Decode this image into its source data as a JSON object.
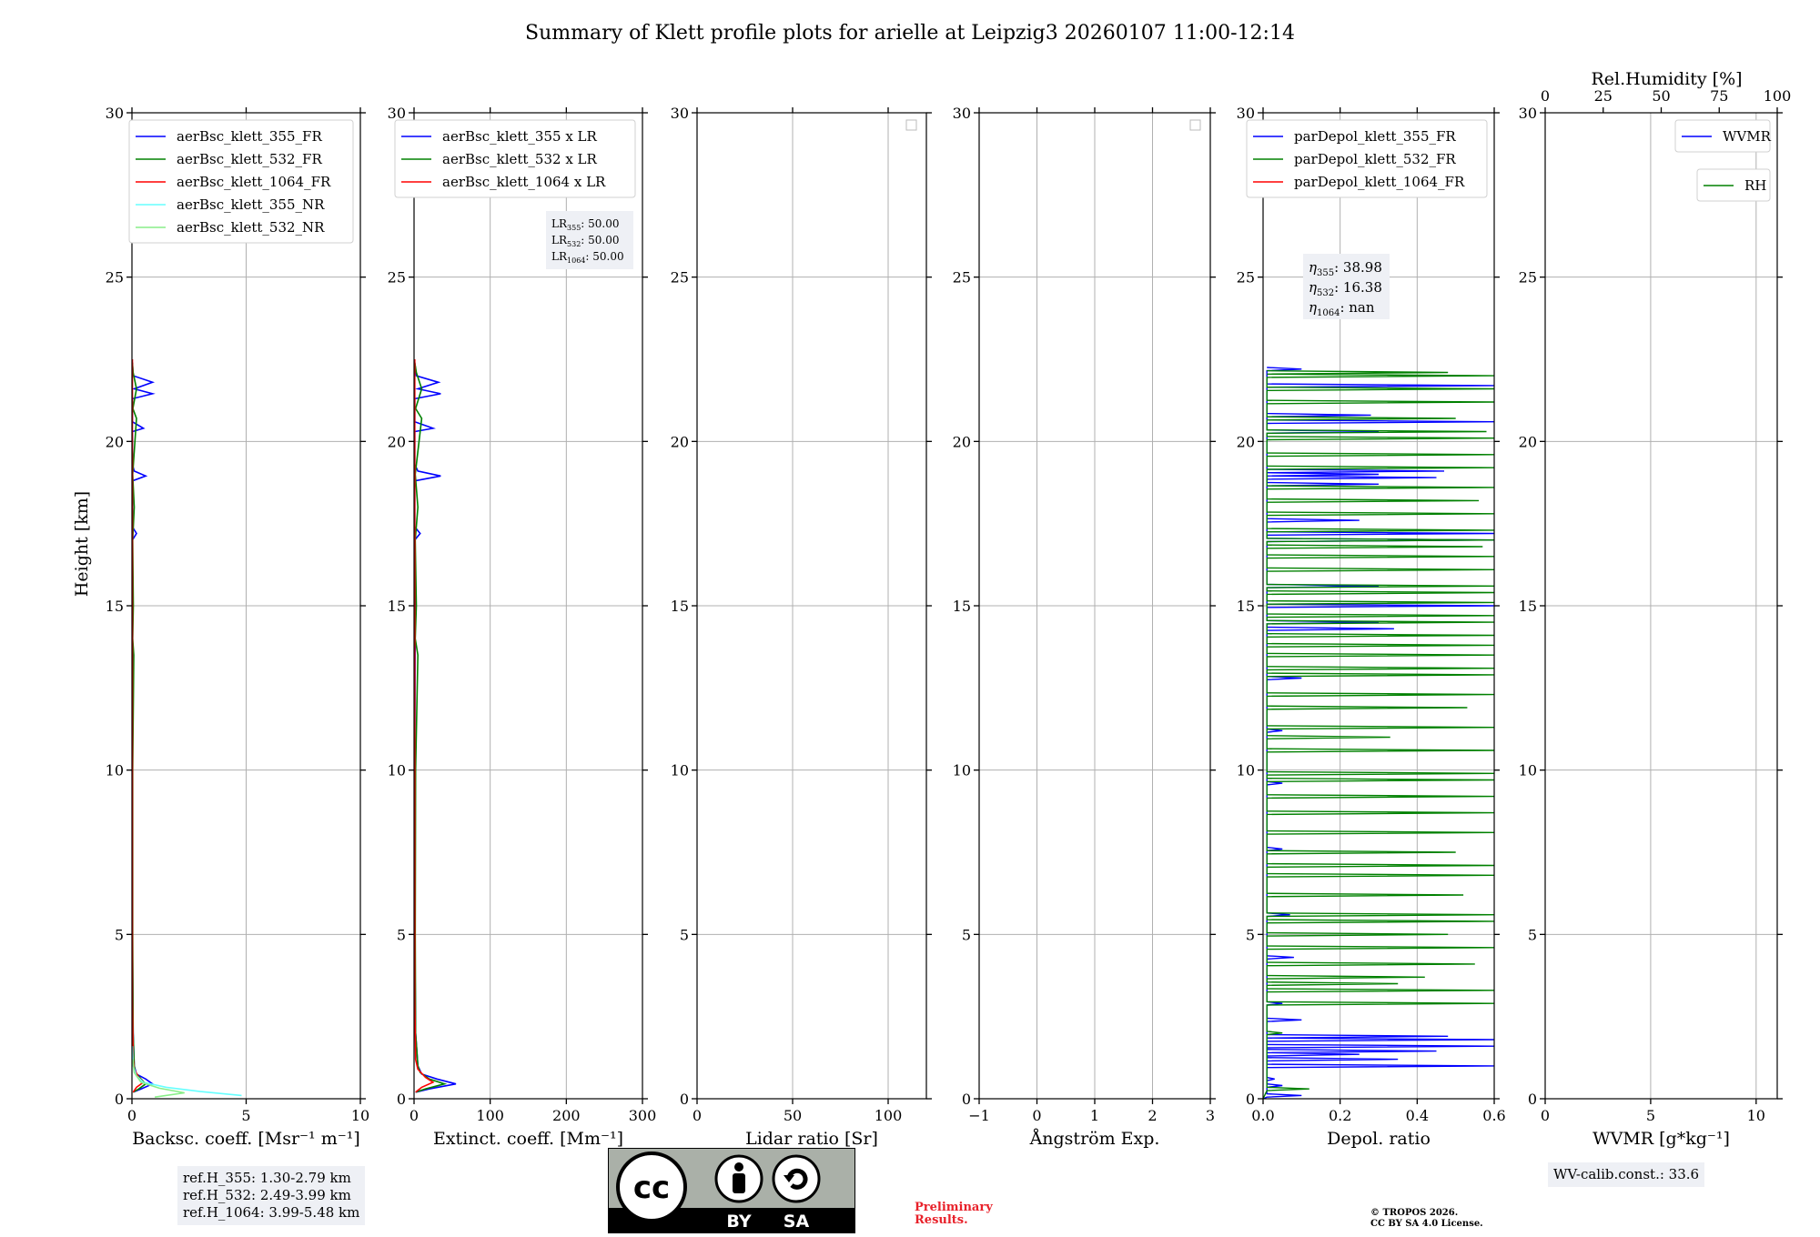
{
  "figure_title": "Summary of Klett profile plots for arielle at Leipzig3 20260107 11:00-12:14",
  "colors": {
    "blue": "#0000ff",
    "green": "#008000",
    "red": "#ff0000",
    "cyan": "#66ffff",
    "lightgreen": "#88ee88",
    "grid": "#b0b0b0"
  },
  "chart_data": [
    {
      "id": "backscatter",
      "type": "line",
      "xlabel": "Backsc. coeff. [Msr⁻¹ m⁻¹]",
      "ylabel": "Height [km]",
      "xlim": [
        0,
        10
      ],
      "ylim": [
        0,
        30
      ],
      "xticks": [
        0,
        5,
        10
      ],
      "yticks": [
        0,
        5,
        10,
        15,
        20,
        25,
        30
      ],
      "legend": [
        "aerBsc_klett_355_FR",
        "aerBsc_klett_532_FR",
        "aerBsc_klett_1064_FR",
        "aerBsc_klett_355_NR",
        "aerBsc_klett_532_NR"
      ],
      "legend_location": "top-right",
      "series": [
        {
          "name": "aerBsc_klett_355_FR",
          "color": "blue",
          "points": [
            [
              0.05,
              0.2
            ],
            [
              0.4,
              0.3
            ],
            [
              0.9,
              0.45
            ],
            [
              0.6,
              0.6
            ],
            [
              0.2,
              0.75
            ],
            [
              0.1,
              1.0
            ],
            [
              0.05,
              2
            ],
            [
              0.02,
              5
            ],
            [
              0.02,
              10
            ],
            [
              0.03,
              15
            ],
            [
              0.02,
              17.0
            ],
            [
              0.2,
              17.2
            ],
            [
              0.02,
              17.4
            ],
            [
              0.02,
              18.8
            ],
            [
              0.6,
              18.95
            ],
            [
              0.1,
              19.1
            ],
            [
              0.02,
              19.3
            ],
            [
              0.02,
              20.3
            ],
            [
              0.5,
              20.4
            ],
            [
              0.02,
              20.6
            ],
            [
              0.02,
              21.3
            ],
            [
              0.9,
              21.45
            ],
            [
              0.1,
              21.6
            ],
            [
              0.9,
              21.8
            ],
            [
              0.05,
              22.0
            ],
            [
              0.02,
              22.4
            ]
          ]
        },
        {
          "name": "aerBsc_klett_532_FR",
          "color": "green",
          "points": [
            [
              0.05,
              0.2
            ],
            [
              0.3,
              0.3
            ],
            [
              0.6,
              0.45
            ],
            [
              0.4,
              0.6
            ],
            [
              0.15,
              0.8
            ],
            [
              0.1,
              1.0
            ],
            [
              0.05,
              2
            ],
            [
              0.03,
              5
            ],
            [
              0.03,
              10
            ],
            [
              0.08,
              13.5
            ],
            [
              0.03,
              14
            ],
            [
              0.06,
              15
            ],
            [
              0.03,
              17
            ],
            [
              0.1,
              18
            ],
            [
              0.03,
              19
            ],
            [
              0.2,
              20.7
            ],
            [
              0.04,
              21
            ],
            [
              0.2,
              21.6
            ],
            [
              0.05,
              22.1
            ],
            [
              0.02,
              22.4
            ]
          ]
        },
        {
          "name": "aerBsc_klett_1064_FR",
          "color": "red",
          "points": [
            [
              0.05,
              0.2
            ],
            [
              0.2,
              0.35
            ],
            [
              0.5,
              0.5
            ],
            [
              0.3,
              0.65
            ],
            [
              0.1,
              0.9
            ],
            [
              0.05,
              1.2
            ],
            [
              0.02,
              3
            ],
            [
              0.02,
              10
            ],
            [
              0.02,
              20
            ],
            [
              0.02,
              22.5
            ]
          ]
        },
        {
          "name": "aerBsc_klett_355_NR",
          "color": "cyan",
          "points": [
            [
              4.8,
              0.1
            ],
            [
              3.0,
              0.22
            ],
            [
              1.5,
              0.35
            ],
            [
              0.5,
              0.5
            ],
            [
              0.2,
              0.7
            ],
            [
              0.05,
              1.0
            ],
            [
              0.02,
              1.6
            ]
          ]
        },
        {
          "name": "aerBsc_klett_532_NR",
          "color": "lightgreen",
          "points": [
            [
              1.0,
              0.05
            ],
            [
              2.3,
              0.18
            ],
            [
              1.2,
              0.32
            ],
            [
              0.4,
              0.5
            ],
            [
              0.1,
              0.8
            ],
            [
              0.03,
              1.2
            ]
          ]
        }
      ]
    },
    {
      "id": "extinction",
      "type": "line",
      "xlabel": "Extinct. coeff. [Mm⁻¹]",
      "ylabel": "",
      "xlim": [
        0,
        300
      ],
      "ylim": [
        0,
        30
      ],
      "xticks": [
        0,
        100,
        200,
        300
      ],
      "yticks": [
        0,
        5,
        10,
        15,
        20,
        25,
        30
      ],
      "legend": [
        "aerBsc_klett_355 x LR",
        "aerBsc_klett_532 x LR",
        "aerBsc_klett_1064 x LR"
      ],
      "legend_location": "top-right",
      "info": [
        "LR",
        "355",
        ": 50.00",
        "LR",
        "532",
        ": 50.00",
        "LR",
        "1064",
        ": 50.00"
      ],
      "series": [
        {
          "name": "aerBsc_klett_355 x LR",
          "color": "blue",
          "points": [
            [
              2,
              0.2
            ],
            [
              20,
              0.3
            ],
            [
              55,
              0.45
            ],
            [
              30,
              0.6
            ],
            [
              10,
              0.75
            ],
            [
              5,
              1.0
            ],
            [
              2,
              2
            ],
            [
              1,
              5
            ],
            [
              1,
              10
            ],
            [
              1.5,
              15
            ],
            [
              1,
              17.0
            ],
            [
              8,
              17.2
            ],
            [
              1,
              17.4
            ],
            [
              1,
              18.8
            ],
            [
              35,
              18.95
            ],
            [
              5,
              19.1
            ],
            [
              1,
              19.3
            ],
            [
              1,
              20.3
            ],
            [
              25,
              20.4
            ],
            [
              1,
              20.6
            ],
            [
              1,
              21.3
            ],
            [
              35,
              21.45
            ],
            [
              5,
              21.6
            ],
            [
              32,
              21.8
            ],
            [
              3,
              22.0
            ],
            [
              1,
              22.4
            ]
          ]
        },
        {
          "name": "aerBsc_klett_532 x LR",
          "color": "green",
          "points": [
            [
              2,
              0.2
            ],
            [
              15,
              0.3
            ],
            [
              40,
              0.45
            ],
            [
              20,
              0.6
            ],
            [
              8,
              0.8
            ],
            [
              5,
              1.0
            ],
            [
              2,
              2
            ],
            [
              1.5,
              5
            ],
            [
              2,
              10
            ],
            [
              5,
              13.5
            ],
            [
              1.5,
              14
            ],
            [
              3,
              15
            ],
            [
              1.5,
              17
            ],
            [
              5,
              18
            ],
            [
              1.5,
              19
            ],
            [
              10,
              20.7
            ],
            [
              2,
              21
            ],
            [
              10,
              21.6
            ],
            [
              3,
              22.1
            ],
            [
              1,
              22.4
            ]
          ]
        },
        {
          "name": "aerBsc_klett_1064 x LR",
          "color": "red",
          "points": [
            [
              2,
              0.2
            ],
            [
              10,
              0.35
            ],
            [
              25,
              0.5
            ],
            [
              15,
              0.65
            ],
            [
              5,
              0.9
            ],
            [
              2,
              1.2
            ],
            [
              1,
              3
            ],
            [
              1,
              10
            ],
            [
              1,
              20
            ],
            [
              1,
              22.5
            ]
          ]
        }
      ]
    },
    {
      "id": "lidar_ratio",
      "type": "line",
      "xlabel": "Lidar ratio [Sr]",
      "ylabel": "",
      "xlim": [
        0,
        120
      ],
      "ylim": [
        0,
        30
      ],
      "xticks": [
        0,
        50,
        100
      ],
      "yticks": [
        0,
        5,
        10,
        15,
        20,
        25,
        30
      ],
      "legend": [],
      "legend_location": "top-right",
      "series": []
    },
    {
      "id": "angstrom",
      "type": "line",
      "xlabel": "Ångström Exp.",
      "ylabel": "",
      "xlim": [
        -1,
        3
      ],
      "ylim": [
        0,
        30
      ],
      "xticks": [
        -1,
        0,
        1,
        2,
        3
      ],
      "yticks": [
        0,
        5,
        10,
        15,
        20,
        25,
        30
      ],
      "legend": [],
      "legend_location": "top-right",
      "series": []
    },
    {
      "id": "depol",
      "type": "line",
      "xlabel": "Depol. ratio",
      "ylabel": "",
      "xlim": [
        0,
        0.6
      ],
      "ylim": [
        0,
        30
      ],
      "xticks": [
        0.0,
        0.2,
        0.4,
        0.6
      ],
      "yticks": [
        0,
        5,
        10,
        15,
        20,
        25,
        30
      ],
      "legend": [
        "parDepol_klett_355_FR",
        "parDepol_klett_532_FR",
        "parDepol_klett_1064_FR"
      ],
      "legend_location": "top-right",
      "info": [
        "η",
        "355",
        ": 38.98",
        "η",
        "532",
        ": 16.38",
        "η",
        "1064",
        ": nan"
      ],
      "series": [
        {
          "name": "parDepol_klett_355_FR",
          "color": "blue",
          "spikes": [
            [
              0.1,
              0.1
            ],
            [
              0.05,
              0.4
            ],
            [
              0.03,
              0.6
            ],
            [
              0.6,
              1.0
            ],
            [
              0.35,
              1.2
            ],
            [
              0.25,
              1.35
            ],
            [
              0.45,
              1.45
            ],
            [
              0.6,
              1.6
            ],
            [
              0.6,
              1.8
            ],
            [
              0.48,
              1.9
            ],
            [
              0.1,
              2.4
            ],
            [
              0.05,
              2.9
            ],
            [
              0.08,
              4.3
            ],
            [
              0.07,
              5.6
            ],
            [
              0.05,
              7.6
            ],
            [
              0.05,
              9.6
            ],
            [
              0.05,
              11.2
            ],
            [
              0.1,
              12.8
            ],
            [
              0.34,
              14.3
            ],
            [
              0.3,
              14.5
            ],
            [
              0.6,
              15.0
            ],
            [
              0.3,
              15.6
            ],
            [
              0.6,
              17.0
            ],
            [
              0.6,
              17.2
            ],
            [
              0.25,
              17.6
            ],
            [
              0.3,
              18.7
            ],
            [
              0.45,
              18.9
            ],
            [
              0.3,
              19.0
            ],
            [
              0.47,
              19.1
            ],
            [
              0.3,
              20.3
            ],
            [
              0.6,
              20.6
            ],
            [
              0.28,
              20.8
            ],
            [
              0.6,
              21.7
            ],
            [
              0.1,
              22.2
            ]
          ]
        },
        {
          "name": "parDepol_klett_532_FR",
          "color": "green",
          "spikes": [
            [
              0.12,
              0.3
            ],
            [
              0.05,
              2.0
            ],
            [
              0.6,
              2.9
            ],
            [
              0.6,
              3.3
            ],
            [
              0.35,
              3.5
            ],
            [
              0.42,
              3.7
            ],
            [
              0.55,
              4.1
            ],
            [
              0.6,
              4.6
            ],
            [
              0.48,
              5.0
            ],
            [
              0.6,
              5.4
            ],
            [
              0.6,
              5.6
            ],
            [
              0.52,
              6.2
            ],
            [
              0.6,
              6.8
            ],
            [
              0.6,
              7.1
            ],
            [
              0.5,
              7.5
            ],
            [
              0.6,
              8.1
            ],
            [
              0.6,
              8.7
            ],
            [
              0.6,
              9.2
            ],
            [
              0.6,
              9.7
            ],
            [
              0.6,
              9.9
            ],
            [
              0.6,
              10.6
            ],
            [
              0.33,
              11.0
            ],
            [
              0.6,
              11.3
            ],
            [
              0.53,
              11.9
            ],
            [
              0.6,
              12.3
            ],
            [
              0.6,
              12.9
            ],
            [
              0.6,
              13.1
            ],
            [
              0.6,
              13.5
            ],
            [
              0.6,
              13.8
            ],
            [
              0.6,
              14.1
            ],
            [
              0.6,
              14.5
            ],
            [
              0.6,
              14.7
            ],
            [
              0.6,
              15.1
            ],
            [
              0.6,
              15.4
            ],
            [
              0.6,
              15.6
            ],
            [
              0.6,
              16.1
            ],
            [
              0.6,
              16.5
            ],
            [
              0.57,
              16.8
            ],
            [
              0.6,
              17.0
            ],
            [
              0.6,
              17.3
            ],
            [
              0.6,
              17.8
            ],
            [
              0.56,
              18.2
            ],
            [
              0.6,
              18.6
            ],
            [
              0.6,
              19.2
            ],
            [
              0.6,
              19.6
            ],
            [
              0.6,
              20.1
            ],
            [
              0.58,
              20.3
            ],
            [
              0.5,
              20.7
            ],
            [
              0.6,
              21.2
            ],
            [
              0.6,
              21.6
            ],
            [
              0.6,
              22.0
            ],
            [
              0.48,
              22.1
            ]
          ]
        },
        {
          "name": "parDepol_klett_1064_FR",
          "color": "red",
          "spikes": []
        }
      ]
    },
    {
      "id": "wvmr",
      "type": "line",
      "xlabel": "WVMR [g*kg⁻¹]",
      "xlabel_top": "Rel.Humidity [%]",
      "ylabel": "",
      "xlim": [
        0,
        11
      ],
      "ylim": [
        0,
        30
      ],
      "xticks": [
        0,
        5,
        10
      ],
      "xticks_top": [
        0,
        25,
        50,
        75,
        100
      ],
      "yticks": [
        0,
        5,
        10,
        15,
        20,
        25,
        30
      ],
      "legend": [
        "WVMR"
      ],
      "legend2": [
        "RH"
      ],
      "legend_location": "top-right",
      "info": [
        "WV-calib.const.: 33.6"
      ],
      "series": []
    }
  ],
  "refheights": [
    "ref.H_355: 1.30-2.79 km",
    "ref.H_532: 2.49-3.99 km",
    "ref.H_1064: 3.99-5.48 km"
  ],
  "license_badge": {
    "cc": "cc",
    "by": "BY",
    "sa": "SA"
  },
  "preliminary": [
    "Preliminary",
    "Results."
  ],
  "copyright": [
    "© TROPOS 2026.",
    "CC BY SA 4.0 License."
  ]
}
